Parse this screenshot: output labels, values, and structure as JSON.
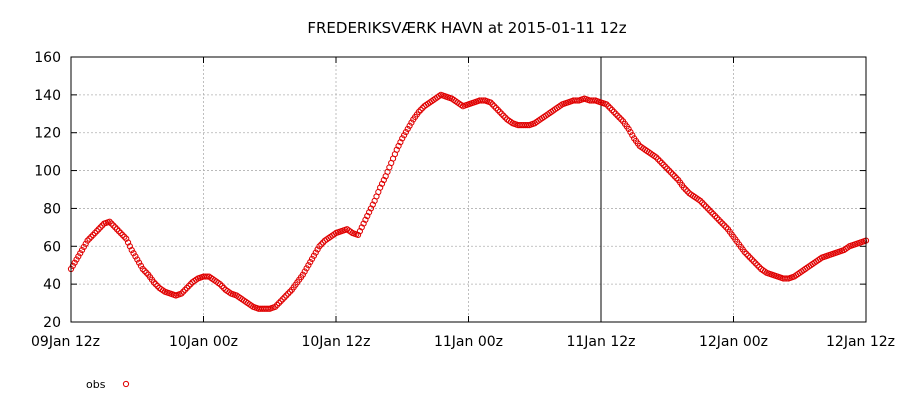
{
  "chart_data": {
    "type": "scatter",
    "title": "FREDERIKSVÆRK HAVN at 2015-01-11 12z",
    "xlabel": "",
    "ylabel": "",
    "x_range_hours": [
      0,
      72
    ],
    "ylim": [
      20,
      160
    ],
    "yticks": [
      20,
      40,
      60,
      80,
      100,
      120,
      140,
      160
    ],
    "xticks": [
      {
        "hour": 0,
        "label": "09Jan 12z"
      },
      {
        "hour": 12,
        "label": "10Jan 00z"
      },
      {
        "hour": 24,
        "label": "10Jan 12z"
      },
      {
        "hour": 36,
        "label": "11Jan 00z"
      },
      {
        "hour": 48,
        "label": "11Jan 12z"
      },
      {
        "hour": 60,
        "label": "12Jan 00z"
      },
      {
        "hour": 72,
        "label": "12Jan 12z"
      }
    ],
    "grid": true,
    "analysis_time_hour": 48,
    "legend_position": "bottom-left",
    "series": [
      {
        "name": "obs",
        "color": "#e00000",
        "marker": "open-circle",
        "points": [
          [
            0,
            48
          ],
          [
            0.5,
            53
          ],
          [
            1,
            58
          ],
          [
            1.5,
            63
          ],
          [
            2,
            66
          ],
          [
            2.5,
            69
          ],
          [
            3,
            72
          ],
          [
            3.5,
            73
          ],
          [
            4,
            70
          ],
          [
            4.5,
            67
          ],
          [
            5,
            64
          ],
          [
            5.5,
            58
          ],
          [
            6,
            53
          ],
          [
            6.5,
            48
          ],
          [
            7,
            45
          ],
          [
            7.5,
            41
          ],
          [
            8,
            38
          ],
          [
            8.5,
            36
          ],
          [
            9,
            35
          ],
          [
            9.5,
            34
          ],
          [
            10,
            35
          ],
          [
            10.5,
            38
          ],
          [
            11,
            41
          ],
          [
            11.5,
            43
          ],
          [
            12,
            44
          ],
          [
            12.5,
            44
          ],
          [
            13,
            42
          ],
          [
            13.5,
            40
          ],
          [
            14,
            37
          ],
          [
            14.5,
            35
          ],
          [
            15,
            34
          ],
          [
            15.5,
            32
          ],
          [
            16,
            30
          ],
          [
            16.5,
            28
          ],
          [
            17,
            27
          ],
          [
            17.5,
            27
          ],
          [
            18,
            27
          ],
          [
            18.5,
            28
          ],
          [
            19,
            31
          ],
          [
            19.5,
            34
          ],
          [
            20,
            37
          ],
          [
            20.5,
            41
          ],
          [
            21,
            45
          ],
          [
            21.5,
            50
          ],
          [
            22,
            55
          ],
          [
            22.5,
            60
          ],
          [
            23,
            63
          ],
          [
            23.5,
            65
          ],
          [
            24,
            67
          ],
          [
            24.5,
            68
          ],
          [
            25,
            69
          ],
          [
            25.5,
            67
          ],
          [
            26,
            66
          ],
          [
            26.5,
            72
          ],
          [
            27,
            78
          ],
          [
            27.5,
            84
          ],
          [
            28,
            91
          ],
          [
            28.5,
            97
          ],
          [
            29,
            104
          ],
          [
            29.5,
            111
          ],
          [
            30,
            117
          ],
          [
            30.5,
            122
          ],
          [
            31,
            127
          ],
          [
            31.5,
            131
          ],
          [
            32,
            134
          ],
          [
            32.5,
            136
          ],
          [
            33,
            138
          ],
          [
            33.5,
            140
          ],
          [
            34,
            139
          ],
          [
            34.5,
            138
          ],
          [
            35,
            136
          ],
          [
            35.5,
            134
          ],
          [
            36,
            135
          ],
          [
            36.5,
            136
          ],
          [
            37,
            137
          ],
          [
            37.5,
            137
          ],
          [
            38,
            136
          ],
          [
            38.5,
            133
          ],
          [
            39,
            130
          ],
          [
            39.5,
            127
          ],
          [
            40,
            125
          ],
          [
            40.5,
            124
          ],
          [
            41,
            124
          ],
          [
            41.5,
            124
          ],
          [
            42,
            125
          ],
          [
            42.5,
            127
          ],
          [
            43,
            129
          ],
          [
            43.5,
            131
          ],
          [
            44,
            133
          ],
          [
            44.5,
            135
          ],
          [
            45,
            136
          ],
          [
            45.5,
            137
          ],
          [
            46,
            137
          ],
          [
            46.5,
            138
          ],
          [
            47,
            137
          ],
          [
            47.5,
            137
          ],
          [
            48,
            136
          ],
          [
            48.5,
            135
          ],
          [
            49,
            132
          ],
          [
            49.5,
            129
          ],
          [
            50,
            126
          ],
          [
            50.5,
            122
          ],
          [
            51,
            117
          ],
          [
            51.5,
            113
          ],
          [
            52,
            111
          ],
          [
            52.5,
            109
          ],
          [
            53,
            107
          ],
          [
            53.5,
            104
          ],
          [
            54,
            101
          ],
          [
            54.5,
            98
          ],
          [
            55,
            95
          ],
          [
            55.5,
            91
          ],
          [
            56,
            88
          ],
          [
            56.5,
            86
          ],
          [
            57,
            84
          ],
          [
            57.5,
            81
          ],
          [
            58,
            78
          ],
          [
            58.5,
            75
          ],
          [
            59,
            72
          ],
          [
            59.5,
            69
          ],
          [
            60,
            65
          ],
          [
            60.5,
            61
          ],
          [
            61,
            57
          ],
          [
            61.5,
            54
          ],
          [
            62,
            51
          ],
          [
            62.5,
            48
          ],
          [
            63,
            46
          ],
          [
            63.5,
            45
          ],
          [
            64,
            44
          ],
          [
            64.5,
            43
          ],
          [
            65,
            43
          ],
          [
            65.5,
            44
          ],
          [
            66,
            46
          ],
          [
            66.5,
            48
          ],
          [
            67,
            50
          ],
          [
            67.5,
            52
          ],
          [
            68,
            54
          ],
          [
            68.5,
            55
          ],
          [
            69,
            56
          ],
          [
            69.5,
            57
          ],
          [
            70,
            58
          ],
          [
            70.5,
            60
          ],
          [
            71,
            61
          ],
          [
            71.5,
            62
          ],
          [
            72,
            63
          ]
        ]
      }
    ]
  }
}
